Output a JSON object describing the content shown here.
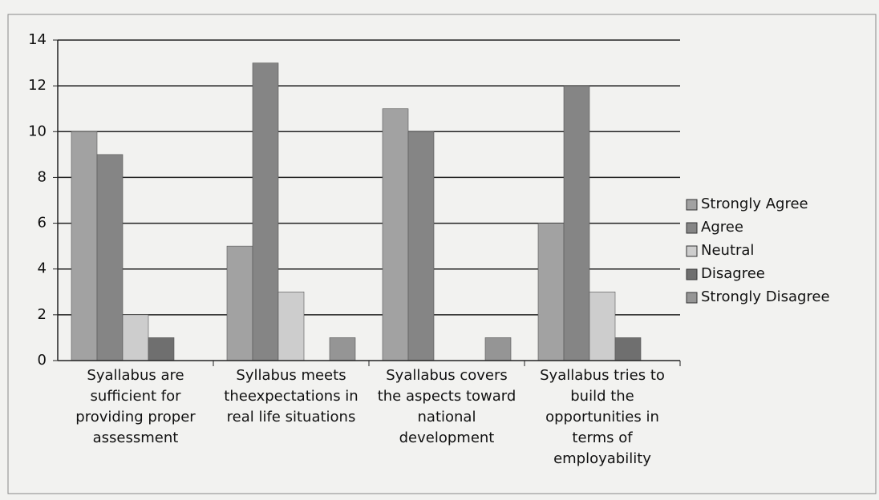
{
  "chart_data": {
    "type": "bar",
    "categories": [
      "Syallabus are sufficient for providing proper assessment",
      "Syllabus meets theexpectations in real life situations",
      "Syallabus covers the aspects toward national development",
      "Syallabus tries to build the opportunities in terms of employability"
    ],
    "series": [
      {
        "name": "Strongly Agree",
        "color": "#a2a2a2",
        "values": [
          10,
          5,
          11,
          6
        ]
      },
      {
        "name": "Agree",
        "color": "#858585",
        "values": [
          9,
          13,
          10,
          12
        ]
      },
      {
        "name": "Neutral",
        "color": "#cdcdcd",
        "values": [
          2,
          3,
          0,
          3
        ]
      },
      {
        "name": "Disagree",
        "color": "#6f6f6f",
        "values": [
          1,
          0,
          0,
          1
        ]
      },
      {
        "name": "Strongly Disagree",
        "color": "#959595",
        "values": [
          0,
          1,
          1,
          0
        ]
      }
    ],
    "ylim": [
      0,
      14
    ],
    "yticks": [
      0,
      2,
      4,
      6,
      8,
      10,
      12,
      14
    ],
    "grid": true,
    "legend": "right"
  }
}
